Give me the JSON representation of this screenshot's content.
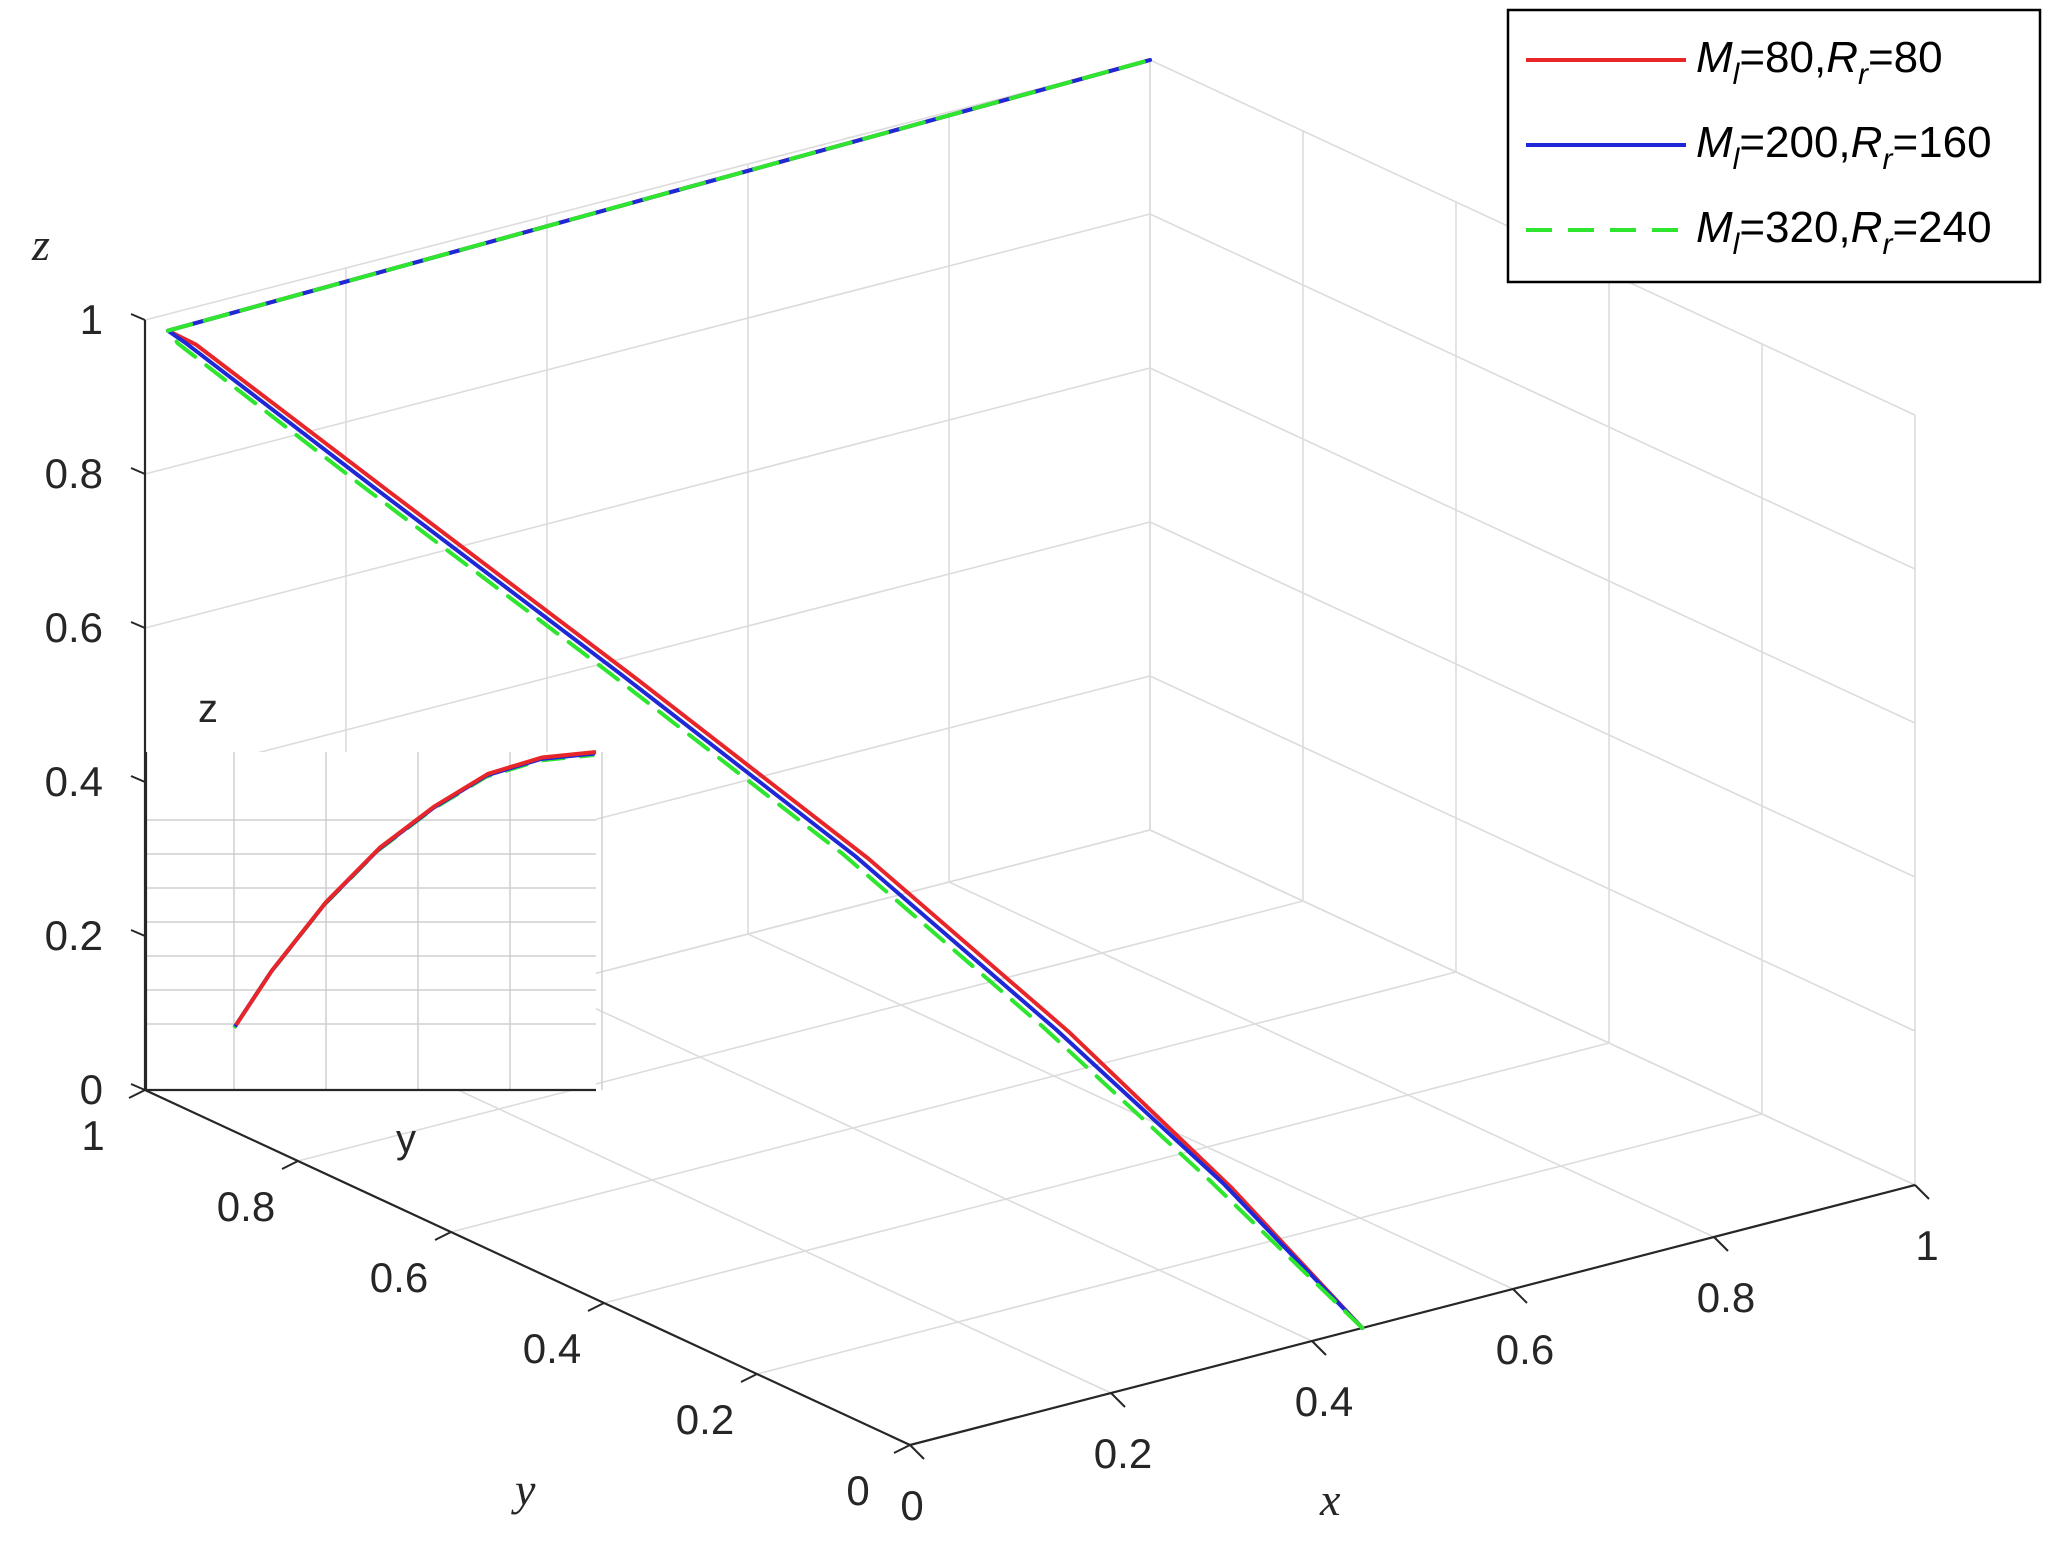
{
  "chart_data": {
    "type": "line",
    "projection": "3d",
    "axes": {
      "x": {
        "label": "x",
        "ticks": [
          "0",
          "0.2",
          "0.4",
          "0.6",
          "0.8",
          "1"
        ],
        "range": [
          0,
          1
        ]
      },
      "y": {
        "label": "y",
        "ticks": [
          "0",
          "0.2",
          "0.4",
          "0.6",
          "0.8",
          "1"
        ],
        "range": [
          0,
          1
        ]
      },
      "z": {
        "label": "z",
        "ticks": [
          "0",
          "0.2",
          "0.4",
          "0.6",
          "0.8",
          "1"
        ],
        "range": [
          0,
          1
        ]
      }
    },
    "grid": true,
    "legend_position": "top-right",
    "series": [
      {
        "name": "M_l=80,R_r=80",
        "color": "#e8262a",
        "style": "solid",
        "points": [
          [
            0.45,
            0,
            0
          ],
          [
            0.38,
            0.08,
            0.17
          ],
          [
            0.31,
            0.2,
            0.34
          ],
          [
            0.24,
            0.37,
            0.51
          ],
          [
            0.16,
            0.57,
            0.68
          ],
          [
            0.08,
            0.79,
            0.85
          ],
          [
            0.02,
            0.96,
            0.98
          ],
          [
            0.0,
            0.97,
            1.0
          ],
          [
            0.5,
            0.985,
            1.0
          ],
          [
            1.0,
            1.0,
            1.0
          ]
        ]
      },
      {
        "name": "M_l=200,R_r=160",
        "color": "#1f28d6",
        "style": "solid",
        "points": [
          [
            0.45,
            0,
            0
          ],
          [
            0.38,
            0.09,
            0.17
          ],
          [
            0.305,
            0.21,
            0.34
          ],
          [
            0.235,
            0.38,
            0.51
          ],
          [
            0.155,
            0.58,
            0.68
          ],
          [
            0.075,
            0.8,
            0.85
          ],
          [
            0.015,
            0.965,
            0.98
          ],
          [
            0.0,
            0.97,
            1.0
          ],
          [
            0.5,
            0.985,
            1.0
          ],
          [
            1.0,
            1.0,
            1.0
          ]
        ]
      },
      {
        "name": "M_l=320,R_r=240",
        "color": "#2ee62e",
        "style": "dashed",
        "points": [
          [
            0.45,
            0,
            0
          ],
          [
            0.375,
            0.1,
            0.17
          ],
          [
            0.3,
            0.22,
            0.34
          ],
          [
            0.23,
            0.39,
            0.51
          ],
          [
            0.15,
            0.59,
            0.68
          ],
          [
            0.07,
            0.81,
            0.85
          ],
          [
            0.01,
            0.97,
            0.98
          ],
          [
            0.0,
            0.97,
            1.0
          ],
          [
            0.5,
            0.985,
            1.0
          ],
          [
            1.0,
            1.0,
            1.0
          ]
        ]
      }
    ],
    "inset": {
      "xlabel": "y",
      "ylabel": "z",
      "curve": [
        [
          0.0,
          0.0
        ],
        [
          0.1,
          0.2
        ],
        [
          0.25,
          0.45
        ],
        [
          0.4,
          0.65
        ],
        [
          0.55,
          0.8
        ],
        [
          0.7,
          0.92
        ],
        [
          0.85,
          0.98
        ],
        [
          1.0,
          1.0
        ]
      ]
    }
  },
  "legend": {
    "entries": [
      {
        "main": "M",
        "sub1": "l",
        "eq1": "=80,",
        "r": "R",
        "sub2": "r",
        "eq2": "=80"
      },
      {
        "main": "M",
        "sub1": "l",
        "eq1": "=200,",
        "r": "R",
        "sub2": "r",
        "eq2": "=160"
      },
      {
        "main": "M",
        "sub1": "l",
        "eq1": "=320,",
        "r": "R",
        "sub2": "r",
        "eq2": "=240"
      }
    ]
  }
}
